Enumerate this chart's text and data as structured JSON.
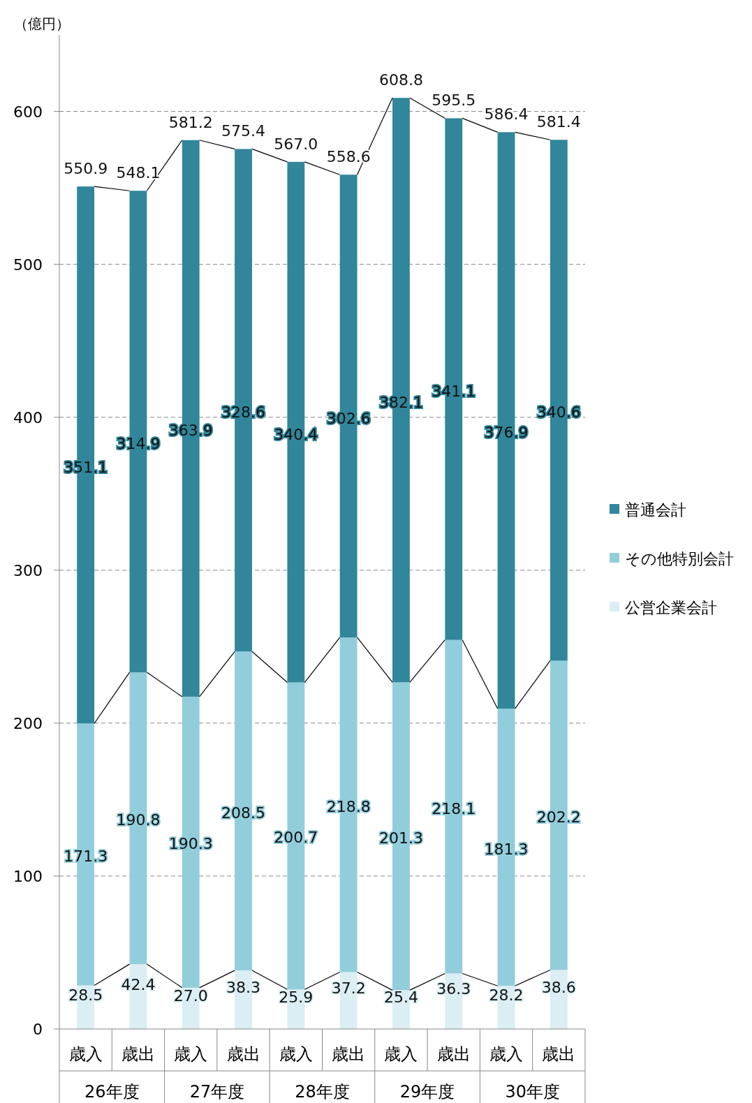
{
  "chart_data": {
    "type": "bar",
    "stacked": true,
    "ylabel": "（億円）",
    "categories": [
      "歳入",
      "歳出",
      "歳入",
      "歳出",
      "歳入",
      "歳出",
      "歳入",
      "歳出",
      "歳入",
      "歳出"
    ],
    "annotations": [
      "26年度",
      "27年度",
      "28年度",
      "29年度",
      "30年度"
    ],
    "series": [
      {
        "name": "公営企業会計",
        "color": "#daeef3",
        "values": [
          28.5,
          42.4,
          27.0,
          38.3,
          25.9,
          37.2,
          25.4,
          36.3,
          28.2,
          38.6
        ],
        "value_labels": [
          "28.5",
          "42.4",
          "27.0",
          "38.3",
          "25.9",
          "37.2",
          "25.4",
          "36.3",
          "28.2",
          "38.6"
        ]
      },
      {
        "name": "その他特別会計",
        "color": "#92cddc",
        "values": [
          171.3,
          190.8,
          190.3,
          208.5,
          200.7,
          218.8,
          201.3,
          218.1,
          181.3,
          202.2
        ],
        "value_labels": [
          "171.3",
          "190.8",
          "190.3",
          "208.5",
          "200.7",
          "218.8",
          "201.3",
          "218.1",
          "181.3",
          "202.2"
        ]
      },
      {
        "name": "普通会計",
        "color": "#31869b",
        "values": [
          351.1,
          314.9,
          363.9,
          328.6,
          340.4,
          302.6,
          382.1,
          341.1,
          376.9,
          340.6
        ],
        "value_labels": [
          "351.1",
          "314.9",
          "363.9",
          "328.6",
          "340.4",
          "302.6",
          "382.1",
          "341.1",
          "376.9",
          "340.6"
        ]
      }
    ],
    "totals": [
      "550.9",
      "548.1",
      "581.2",
      "575.4",
      "567.0",
      "558.6",
      "608.8",
      "595.5",
      "586.4",
      "581.4"
    ],
    "ylim": [
      0,
      650
    ],
    "yticks": [
      0,
      100,
      200,
      300,
      400,
      500,
      600
    ],
    "grid": "y",
    "legend": "right"
  }
}
